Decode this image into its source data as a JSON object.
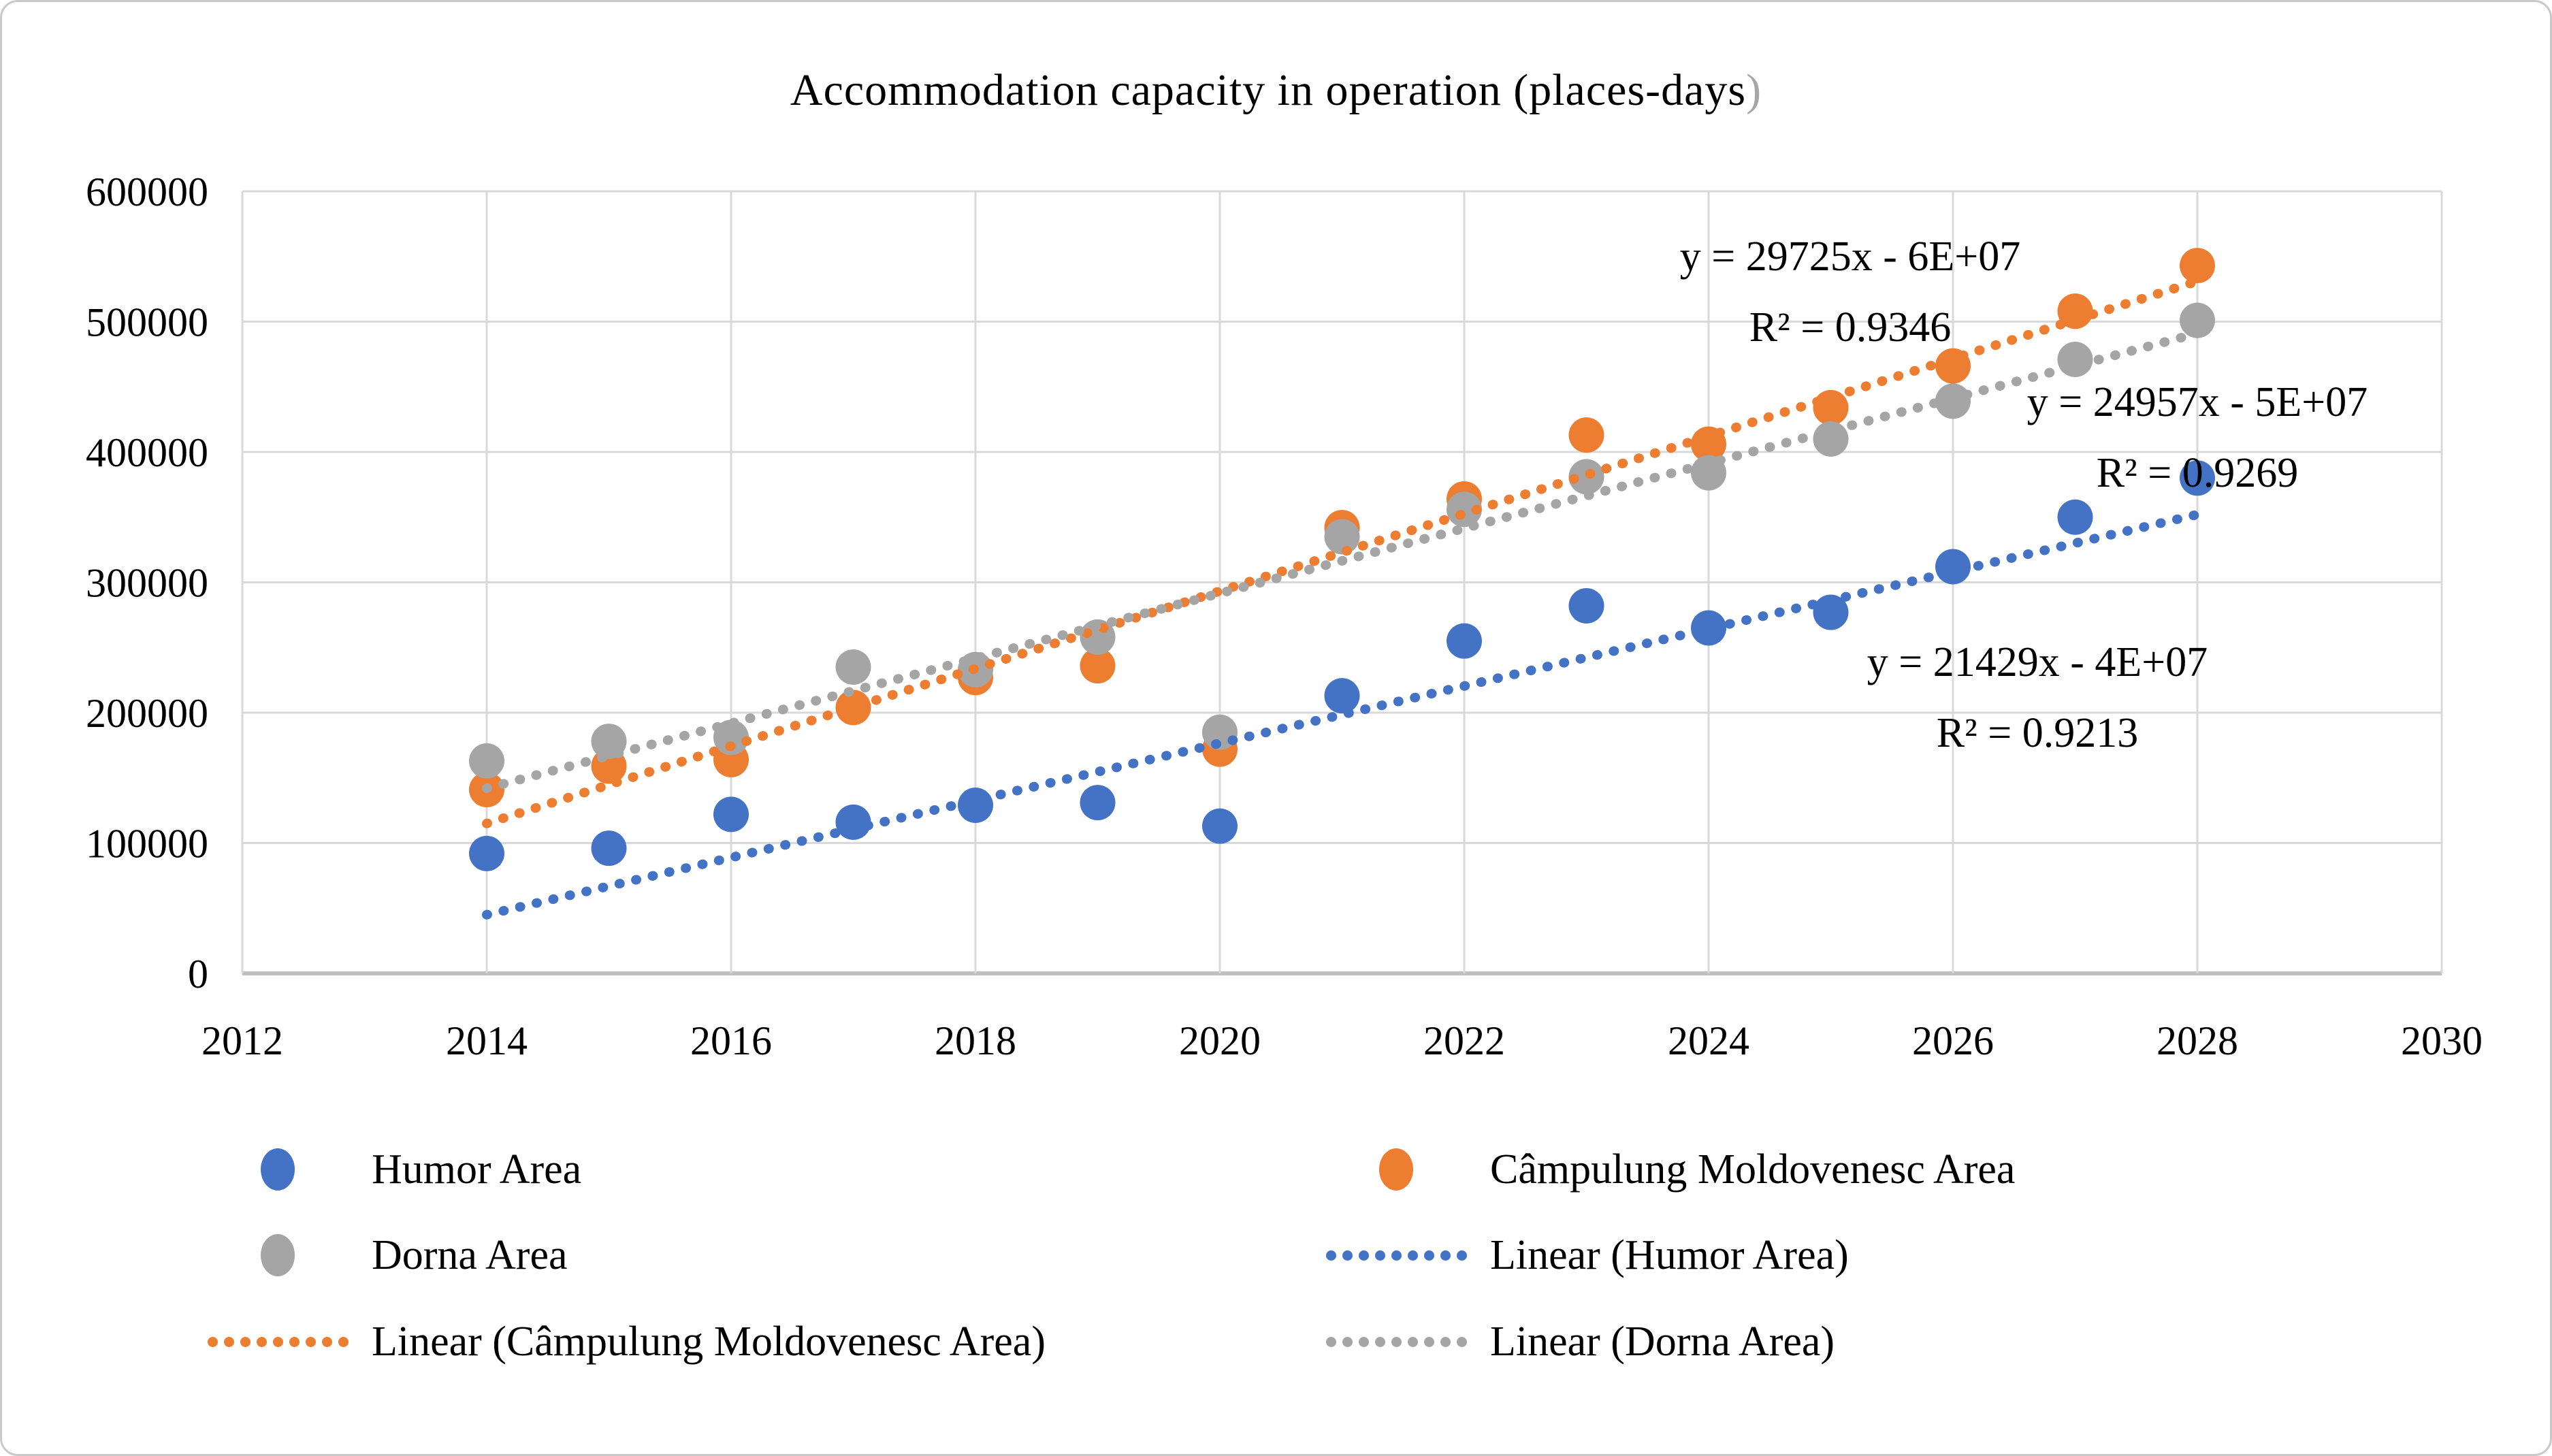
{
  "title": {
    "main": "Accommodation capacity in operation (places-days",
    "paren": ")"
  },
  "chart_data": {
    "type": "scatter",
    "title": "Accommodation capacity in operation (places-days)",
    "x": [
      2014,
      2015,
      2016,
      2017,
      2018,
      2019,
      2020,
      2021,
      2022,
      2023,
      2024,
      2025,
      2026,
      2027,
      2028
    ],
    "series": [
      {
        "name": "Humor Area",
        "color": "#4472C4",
        "values": [
          92000,
          96000,
          122000,
          116000,
          129000,
          131000,
          113000,
          213000,
          255000,
          282000,
          265000,
          277000,
          312000,
          350000,
          380000
        ]
      },
      {
        "name": "Câmpulung Moldovenesc Area",
        "color": "#ED7D31",
        "values": [
          141000,
          159000,
          164000,
          204000,
          227000,
          236000,
          172000,
          342000,
          364000,
          413000,
          406000,
          434000,
          466000,
          508000,
          543000
        ]
      },
      {
        "name": "Dorna Area",
        "color": "#A5A5A5",
        "values": [
          163000,
          178000,
          181000,
          235000,
          233000,
          258000,
          185000,
          335000,
          356000,
          381000,
          384000,
          410000,
          439000,
          471000,
          501000
        ]
      }
    ],
    "trendlines": [
      {
        "name": "Linear (Humor Area)",
        "series": "Humor Area",
        "color": "#4472C4",
        "equation": "y = 21429x - 4E+07",
        "r2": "R² = 0.9213",
        "x_start": 2014,
        "y_start": 45000,
        "x_end": 2028,
        "y_end": 352000
      },
      {
        "name": "Linear (Câmpulung Moldovenesc Area)",
        "series": "Câmpulung Moldovenesc Area",
        "color": "#ED7D31",
        "equation": "y = 29725x - 6E+07",
        "r2": "R² = 0.9346",
        "x_start": 2014,
        "y_start": 115000,
        "x_end": 2028,
        "y_end": 531000
      },
      {
        "name": "Linear (Dorna Area)",
        "series": "Dorna Area",
        "color": "#A5A5A5",
        "equation": "y = 24957x - 5E+07",
        "r2": "R² = 0.9269",
        "x_start": 2014,
        "y_start": 142000,
        "x_end": 2028,
        "y_end": 491000
      }
    ],
    "axes": {
      "x_min": 2012,
      "x_max": 2030,
      "x_tick_step": 2,
      "x_ticks": [
        2012,
        2014,
        2016,
        2018,
        2020,
        2022,
        2024,
        2026,
        2028,
        2030
      ],
      "y_min": 0,
      "y_max": 600000,
      "y_tick_step": 100000,
      "y_ticks": [
        0,
        100000,
        200000,
        300000,
        400000,
        500000,
        600000
      ]
    },
    "grid": true,
    "gridline_color": "#D9D9D9",
    "axis_line_color": "#BFBFBF",
    "legend_position": "bottom"
  },
  "legend": {
    "items": [
      {
        "label": "Humor Area",
        "marker": "dot",
        "color": "#4472C4"
      },
      {
        "label": "Câmpulung Moldovenesc Area",
        "marker": "dot",
        "color": "#ED7D31"
      },
      {
        "label": "Dorna Area",
        "marker": "dot",
        "color": "#A5A5A5"
      },
      {
        "label": "Linear (Humor Area)",
        "marker": "dotted-line",
        "color": "#4472C4"
      },
      {
        "label": "Linear (Câmpulung Moldovenesc Area)",
        "marker": "dotted-line",
        "color": "#ED7D31"
      },
      {
        "label": "Linear (Dorna Area)",
        "marker": "dotted-line",
        "color": "#A5A5A5"
      }
    ]
  }
}
